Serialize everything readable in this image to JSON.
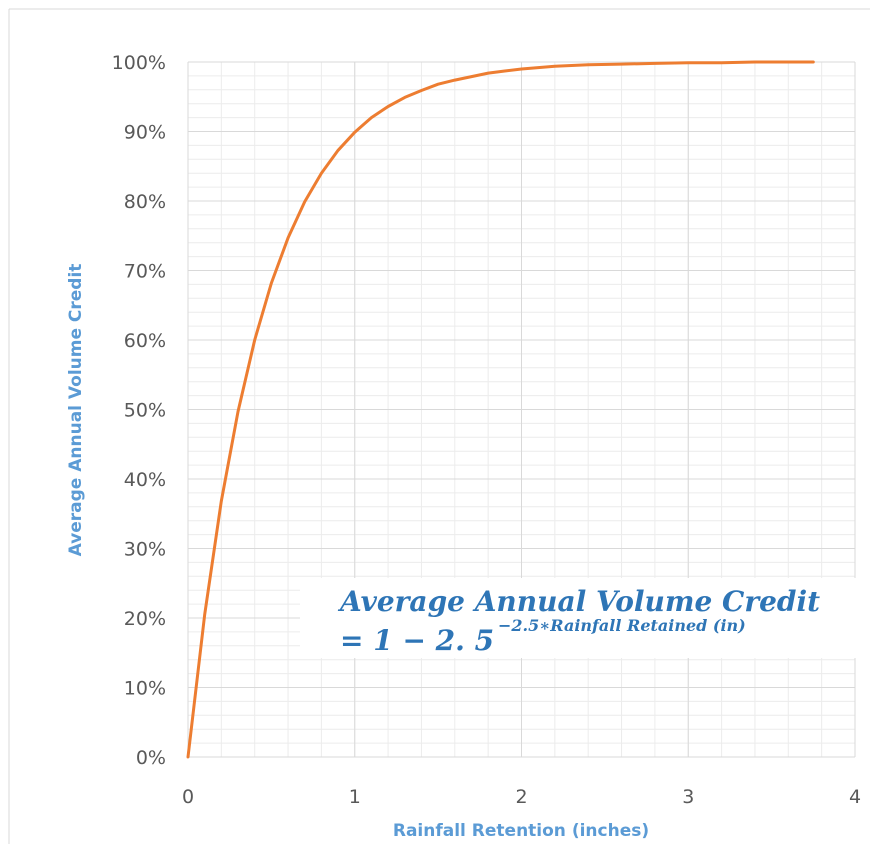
{
  "chart_data": {
    "type": "line",
    "title": "",
    "xlabel": "Rainfall Retention (inches)",
    "ylabel": "Average Annual Volume Credit",
    "xlim": [
      0,
      4
    ],
    "ylim": [
      0,
      1
    ],
    "x_ticks": [
      "0",
      "1",
      "2",
      "3",
      "4"
    ],
    "y_ticks": [
      "0%",
      "10%",
      "20%",
      "30%",
      "40%",
      "50%",
      "60%",
      "70%",
      "80%",
      "90%",
      "100%"
    ],
    "grid": {
      "major": true,
      "minor": true
    },
    "legend": "none",
    "series": [
      {
        "color": "#ed7d31",
        "x": [
          0,
          0.1,
          0.2,
          0.3,
          0.4,
          0.5,
          0.6,
          0.7,
          0.8,
          0.9,
          1.0,
          1.1,
          1.2,
          1.3,
          1.4,
          1.5,
          1.6,
          1.7,
          1.8,
          1.9,
          2.0,
          2.2,
          2.4,
          2.6,
          2.8,
          3.0,
          3.2,
          3.4,
          3.6,
          3.75
        ],
        "y": [
          0,
          0.205,
          0.368,
          0.497,
          0.6,
          0.682,
          0.747,
          0.799,
          0.84,
          0.873,
          0.899,
          0.92,
          0.936,
          0.949,
          0.959,
          0.968,
          0.974,
          0.979,
          0.984,
          0.987,
          0.99,
          0.994,
          0.996,
          0.997,
          0.998,
          0.999,
          0.999,
          1.0,
          1.0,
          1.0
        ]
      }
    ],
    "annotation": {
      "line1": "Average Annual Volume Credit",
      "line2": "= 1 − 2. 5",
      "exponent": "−2.5∗Rainfall Retained (in)"
    }
  }
}
